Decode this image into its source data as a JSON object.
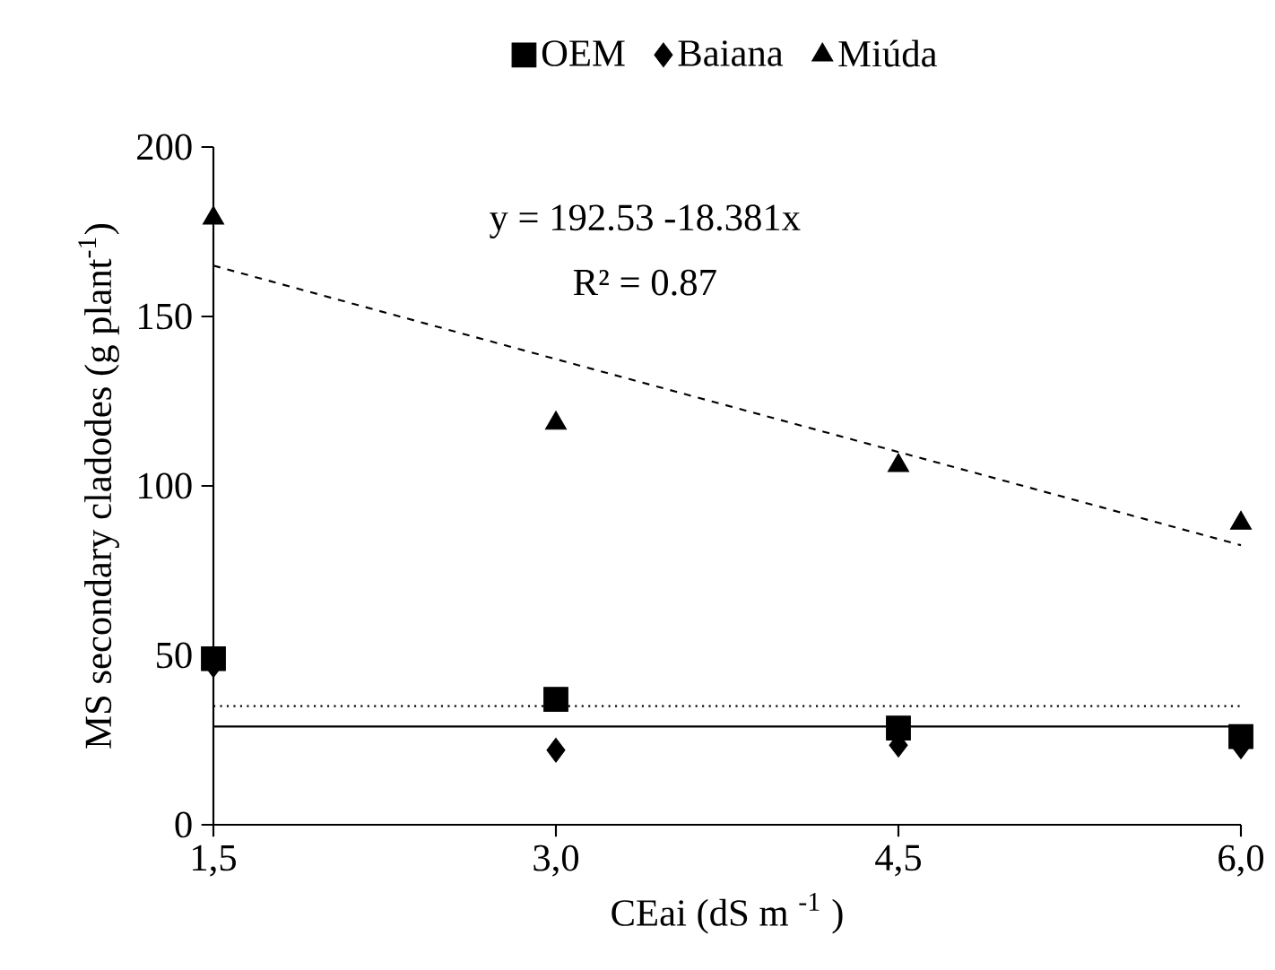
{
  "chart_data": {
    "type": "scatter",
    "xlabel": "CEai (dS m $^{-1}$ )",
    "ylabel": "MS secondary cladodes (g plant$^{-1}$)",
    "annotations": [
      "y = 192.53 -18.381x",
      "R² = 0.87"
    ],
    "x": [
      1.5,
      3.0,
      4.5,
      6.0
    ],
    "series": [
      {
        "name": "OEM",
        "color": "#000000",
        "marker": "square",
        "values": [
          49,
          37,
          28.5,
          26
        ]
      },
      {
        "name": "Baiana",
        "color": "#000000",
        "marker": "diamond",
        "values": [
          47,
          22,
          23.5,
          23
        ]
      },
      {
        "name": "Miúda",
        "color": "#000000",
        "marker": "triangle",
        "values": [
          179,
          118.5,
          106,
          89
        ]
      },
      {
        "type": "line",
        "color": "#000000",
        "marker": "none",
        "line_style": "dashed",
        "values": [
          165,
          137.4,
          110,
          82.5
        ]
      },
      {
        "type": "line",
        "color": "#000000",
        "marker": "none",
        "line_style": "dotted",
        "values": [
          35,
          35,
          35,
          35
        ]
      },
      {
        "type": "line",
        "color": "#000000",
        "marker": "none",
        "line_style": "solid",
        "values": [
          29,
          29,
          29,
          29
        ]
      }
    ],
    "xlim": [
      1.5,
      6.0
    ],
    "xticks": [
      {
        "value": 1.5,
        "label": "1,5"
      },
      {
        "value": 3.0,
        "label": "3,0"
      },
      {
        "value": 4.5,
        "label": "4,5"
      },
      {
        "value": 6.0,
        "label": "6,0"
      }
    ],
    "ylim": [
      0,
      200
    ],
    "yticks": [
      0,
      50,
      100,
      150,
      200
    ],
    "grid": false,
    "legend": "top"
  }
}
